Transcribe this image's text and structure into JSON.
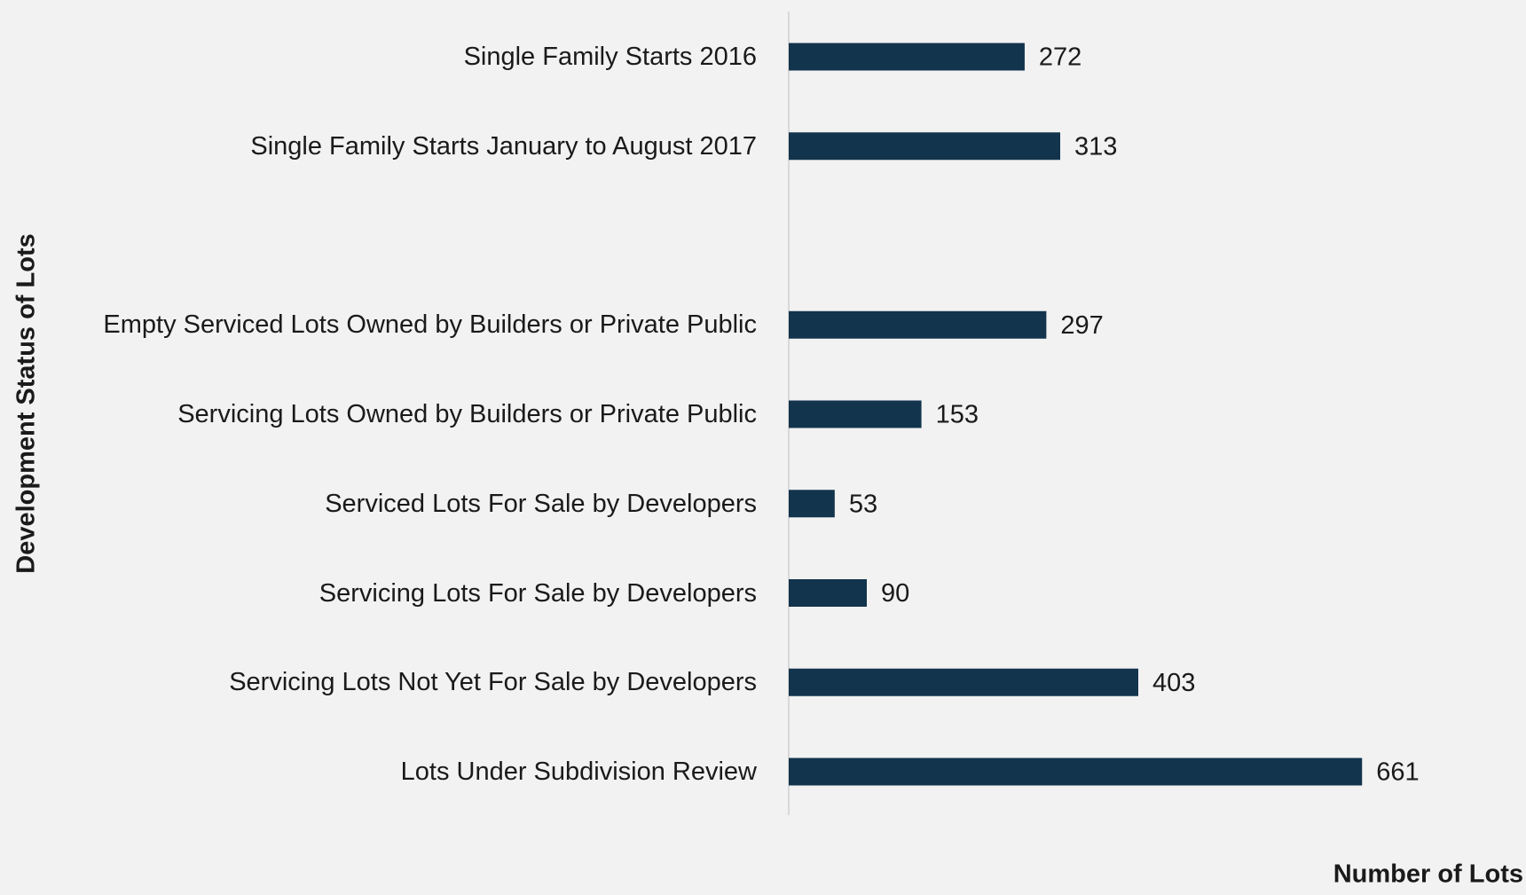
{
  "chart_data": {
    "type": "bar",
    "orientation": "horizontal",
    "x_label": "Number of Lots",
    "y_label": "Development Status of Lots",
    "categories": [
      "Single Family Starts 2016",
      "Single Family Starts January to August 2017",
      null,
      "Empty Serviced Lots Owned by Builders or Private Public",
      "Servicing Lots Owned by Builders or Private Public",
      "Serviced Lots For Sale by Developers",
      "Servicing Lots For Sale by Developers",
      "Servicing Lots Not Yet For Sale by Developers",
      "Lots Under Subdivision Review"
    ],
    "values": [
      272,
      313,
      null,
      297,
      153,
      53,
      90,
      403,
      661
    ],
    "color": "#12344d",
    "xlim": [
      0,
      850
    ]
  }
}
